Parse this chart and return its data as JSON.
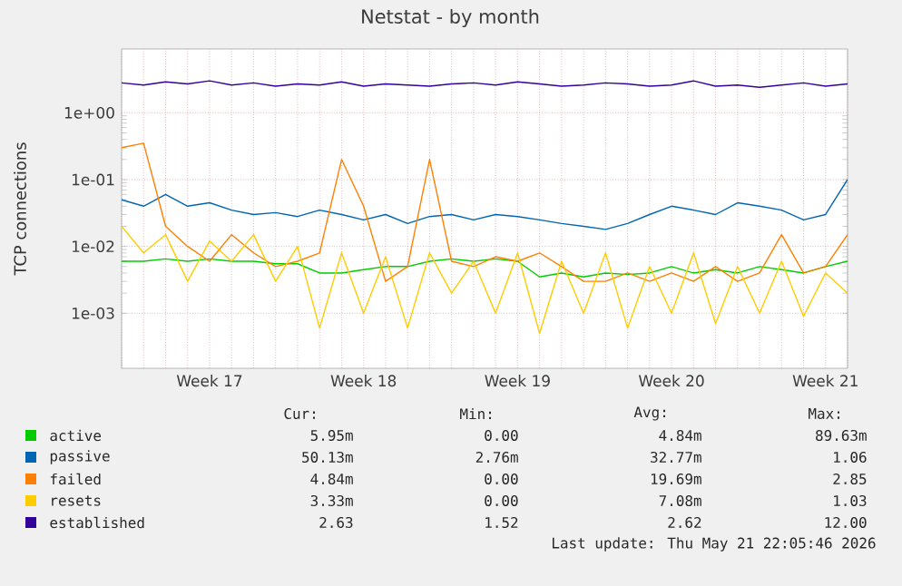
{
  "chart_data": {
    "type": "line",
    "title": "Netstat - by month",
    "ylabel": "TCP connections",
    "categories": [
      null,
      null,
      null,
      null,
      "Week 17",
      null,
      null,
      null,
      null,
      null,
      null,
      "Week 18",
      null,
      null,
      null,
      null,
      null,
      null,
      "Week 19",
      null,
      null,
      null,
      null,
      null,
      null,
      "Week 20",
      null,
      null,
      null,
      null,
      null,
      null,
      "Week 21",
      null
    ],
    "log": "y",
    "ylim": [
      0.00015,
      9
    ],
    "yticks": [
      {
        "value": 0.001,
        "label": "1e-03"
      },
      {
        "value": 0.01,
        "label": "1e-02"
      },
      {
        "value": 0.1,
        "label": "1e-01"
      },
      {
        "value": 1,
        "label": "1e+00"
      }
    ],
    "grid": true,
    "legend": "bottom",
    "marker": "none",
    "line_style": "solid",
    "series": [
      {
        "name": "active",
        "color": "#00cc00",
        "values": [
          0.006,
          0.006,
          0.0065,
          0.006,
          0.0065,
          0.006,
          0.006,
          0.0055,
          0.0055,
          0.004,
          0.004,
          0.0045,
          0.005,
          0.005,
          0.006,
          0.0065,
          0.006,
          0.0065,
          0.006,
          0.0035,
          0.004,
          0.0035,
          0.004,
          0.0038,
          0.004,
          0.005,
          0.004,
          0.0045,
          0.004,
          0.005,
          0.0045,
          0.004,
          0.005,
          0.006
        ]
      },
      {
        "name": "passive",
        "color": "#0066b3",
        "values": [
          0.05,
          0.04,
          0.06,
          0.04,
          0.045,
          0.035,
          0.03,
          0.032,
          0.028,
          0.035,
          0.03,
          0.025,
          0.03,
          0.022,
          0.028,
          0.03,
          0.025,
          0.03,
          0.028,
          0.025,
          0.022,
          0.02,
          0.018,
          0.022,
          0.03,
          0.04,
          0.035,
          0.03,
          0.045,
          0.04,
          0.035,
          0.025,
          0.03,
          0.1
        ]
      },
      {
        "name": "failed",
        "color": "#ff8000",
        "values": [
          0.3,
          0.35,
          0.02,
          0.01,
          0.006,
          0.015,
          0.008,
          0.005,
          0.006,
          0.008,
          0.2,
          0.04,
          0.003,
          0.005,
          0.2,
          0.006,
          0.005,
          0.007,
          0.006,
          0.008,
          0.005,
          0.003,
          0.003,
          0.004,
          0.003,
          0.004,
          0.003,
          0.005,
          0.003,
          0.004,
          0.015,
          0.004,
          0.005,
          0.015
        ]
      },
      {
        "name": "resets",
        "color": "#ffcc00",
        "values": [
          0.02,
          0.008,
          0.015,
          0.003,
          0.012,
          0.006,
          0.015,
          0.003,
          0.01,
          0.0006,
          0.008,
          0.001,
          0.007,
          0.0006,
          0.008,
          0.002,
          0.006,
          0.001,
          0.008,
          0.0005,
          0.006,
          0.001,
          0.008,
          0.0006,
          0.005,
          0.001,
          0.008,
          0.0007,
          0.005,
          0.001,
          0.006,
          0.0009,
          0.004,
          0.002
        ]
      },
      {
        "name": "established",
        "color": "#330099",
        "values": [
          2.8,
          2.6,
          2.9,
          2.7,
          3.0,
          2.6,
          2.8,
          2.5,
          2.7,
          2.6,
          2.9,
          2.5,
          2.7,
          2.6,
          2.5,
          2.7,
          2.8,
          2.6,
          2.9,
          2.7,
          2.5,
          2.6,
          2.8,
          2.7,
          2.5,
          2.6,
          3.0,
          2.5,
          2.6,
          2.4,
          2.6,
          2.8,
          2.5,
          2.7
        ]
      }
    ],
    "annotations": [
      "Cur:",
      "Min:",
      "Avg:",
      "Max:",
      "5.95m",
      "0.00",
      "4.84m",
      "89.63m",
      "50.13m",
      "2.76m",
      "32.77m",
      "1.06",
      "4.84m",
      "0.00",
      "19.69m",
      "2.85",
      "3.33m",
      "0.00",
      "7.08m",
      "1.03",
      "2.63",
      "1.52",
      "2.62",
      "12.00",
      "Last update: Thu May 21 22:05:46 2026"
    ]
  }
}
